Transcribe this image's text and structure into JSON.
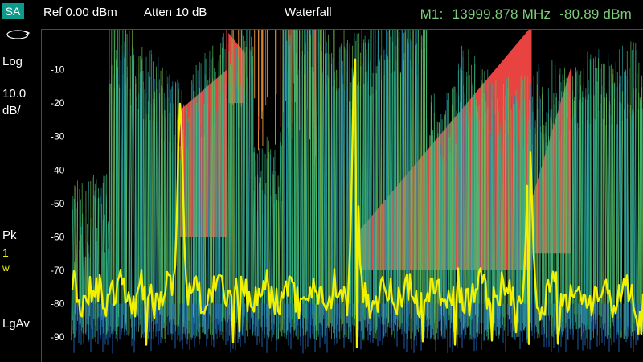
{
  "mode": "SA",
  "header": {
    "ref_level": "Ref 0.00 dBm",
    "attenuation": "Atten 10 dB",
    "view": "Waterfall",
    "marker_label": "M1:",
    "marker_frequency": "13999.878 MHz",
    "marker_amplitude": "-80.89 dBm"
  },
  "sidebar": {
    "sweep_icon": "sweep-cycle-icon",
    "scale_type": "Log",
    "scale_value": "10.0",
    "scale_unit": "dB/",
    "detector_label": "Pk",
    "detector_trace": "1",
    "detector_mode": "w",
    "average_type": "LgAv"
  },
  "colors": {
    "trace": "#f2f200",
    "waterfall_high": "#e84340",
    "waterfall_mid": "#2fb58a",
    "waterfall_low": "#1d5fae",
    "grid_text": "#ffffff",
    "marker_text": "#7ccf7a",
    "mode_badge": "#0b9a8c"
  },
  "chart_data": {
    "type": "line",
    "ylabel": "",
    "y_ticks": [
      "-10",
      "-20",
      "-30",
      "-40",
      "-50",
      "-60",
      "-70",
      "-80",
      "-90"
    ],
    "ylim": [
      -95,
      0
    ],
    "series": [
      {
        "peaks": [
          {
            "position": 0.23,
            "level": -20
          },
          {
            "position": 0.52,
            "level": -6
          },
          {
            "position": 0.81,
            "level": -31
          }
        ],
        "noise_floor": -77
      }
    ]
  }
}
